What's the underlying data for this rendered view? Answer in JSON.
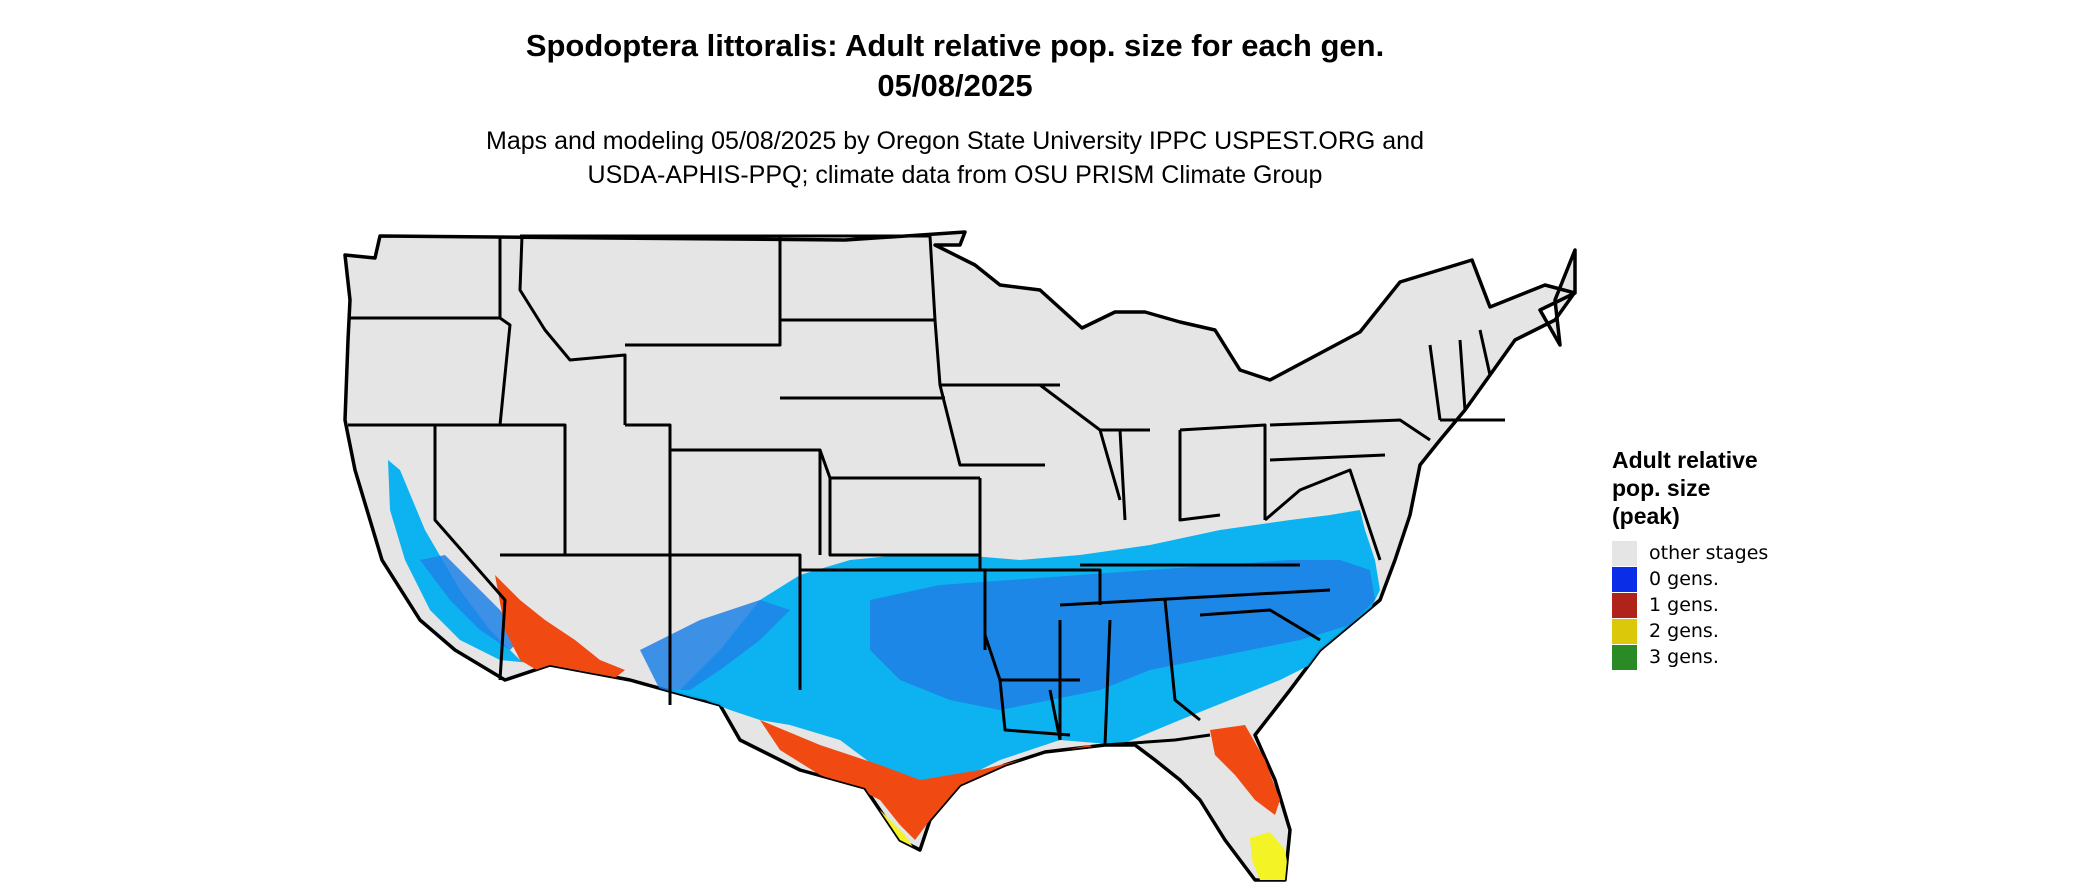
{
  "header": {
    "title_line1": "Spodoptera littoralis: Adult relative pop. size for each gen.",
    "title_line2": "05/08/2025",
    "subtitle_line1": "Maps and modeling 05/08/2025 by Oregon State University IPPC USPEST.ORG and",
    "subtitle_line2": "USDA-APHIS-PPQ; climate data from OSU PRISM Climate Group"
  },
  "legend": {
    "title_line1": "Adult relative",
    "title_line2": "pop. size",
    "title_line3": "(peak)",
    "items": [
      {
        "label": "other stages",
        "color": "#e5e5e5"
      },
      {
        "label": "0 gens.",
        "color": "#0a2ee8"
      },
      {
        "label": "1 gens.",
        "color": "#b0231a"
      },
      {
        "label": "2 gens.",
        "color": "#dcc80a"
      },
      {
        "label": "3 gens.",
        "color": "#2a8a26"
      }
    ]
  },
  "map": {
    "region": "contiguous-united-states",
    "base_color": "#e5e5e5",
    "border_color": "#000000",
    "zone_colors": {
      "light_blue": "#00b0f0",
      "mid_blue": "#1e82e6",
      "orange_red": "#f04a12",
      "yellow": "#f3f325"
    }
  }
}
